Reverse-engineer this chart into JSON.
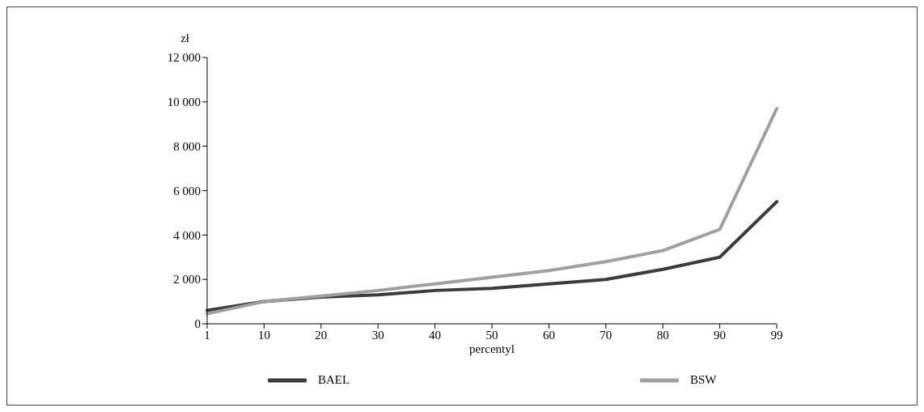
{
  "chart_data": {
    "type": "line",
    "xlabel": "percentyl",
    "ylabel": "zł",
    "categories": [
      "1",
      "10",
      "20",
      "30",
      "40",
      "50",
      "60",
      "70",
      "80",
      "90",
      "99"
    ],
    "series": [
      {
        "name": "BAEL",
        "color": "#3c3c3c",
        "values": [
          600,
          1000,
          1200,
          1300,
          1500,
          1600,
          1800,
          2000,
          2450,
          3000,
          5500
        ]
      },
      {
        "name": "BSW",
        "color": "#a0a0a0",
        "values": [
          450,
          1000,
          1250,
          1500,
          1800,
          2100,
          2400,
          2800,
          3300,
          4250,
          9700
        ]
      }
    ],
    "ylim": [
      0,
      12000
    ],
    "yticks": [
      0,
      {
        "value": 2000,
        "label": "2 000"
      },
      {
        "value": 4000,
        "label": "4 000"
      },
      {
        "value": 6000,
        "label": "6 000"
      },
      {
        "value": 8000,
        "label": "8 000"
      },
      {
        "value": 10000,
        "label": "10 000"
      },
      {
        "value": 12000,
        "label": "12 000"
      }
    ],
    "grid": false,
    "legend": "bottom",
    "marker": "none",
    "line_style": "solid"
  }
}
